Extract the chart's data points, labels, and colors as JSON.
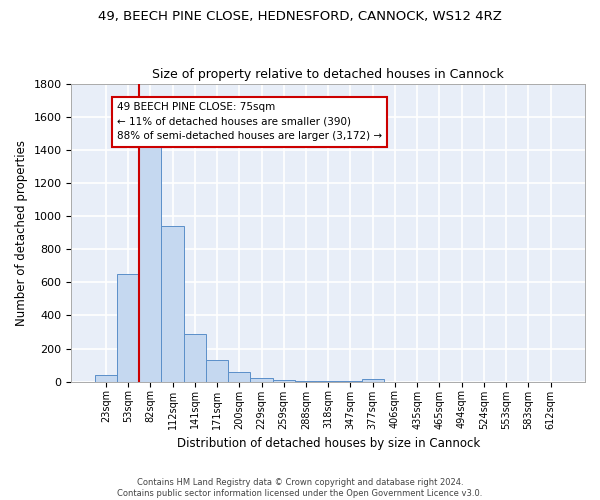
{
  "title": "49, BEECH PINE CLOSE, HEDNESFORD, CANNOCK, WS12 4RZ",
  "subtitle": "Size of property relative to detached houses in Cannock",
  "xlabel": "Distribution of detached houses by size in Cannock",
  "ylabel": "Number of detached properties",
  "bin_labels": [
    "23sqm",
    "53sqm",
    "82sqm",
    "112sqm",
    "141sqm",
    "171sqm",
    "200sqm",
    "229sqm",
    "259sqm",
    "288sqm",
    "318sqm",
    "347sqm",
    "377sqm",
    "406sqm",
    "435sqm",
    "465sqm",
    "494sqm",
    "524sqm",
    "553sqm",
    "583sqm",
    "612sqm"
  ],
  "bar_heights": [
    40,
    650,
    1470,
    940,
    290,
    130,
    60,
    20,
    10,
    5,
    5,
    5,
    15,
    0,
    0,
    0,
    0,
    0,
    0,
    0,
    0
  ],
  "bar_color": "#c5d8f0",
  "bar_edge_color": "#5b8fc9",
  "bg_color": "#e8eef8",
  "grid_color": "#ffffff",
  "vline_color": "#cc0000",
  "vline_x_index": 2,
  "annotation_line1": "49 BEECH PINE CLOSE: 75sqm",
  "annotation_line2": "← 11% of detached houses are smaller (390)",
  "annotation_line3": "88% of semi-detached houses are larger (3,172) →",
  "annotation_box_edge": "#cc0000",
  "ylim": [
    0,
    1800
  ],
  "yticks": [
    0,
    200,
    400,
    600,
    800,
    1000,
    1200,
    1400,
    1600,
    1800
  ],
  "footer_line1": "Contains HM Land Registry data © Crown copyright and database right 2024.",
  "footer_line2": "Contains public sector information licensed under the Open Government Licence v3.0.",
  "fig_bg": "#ffffff"
}
